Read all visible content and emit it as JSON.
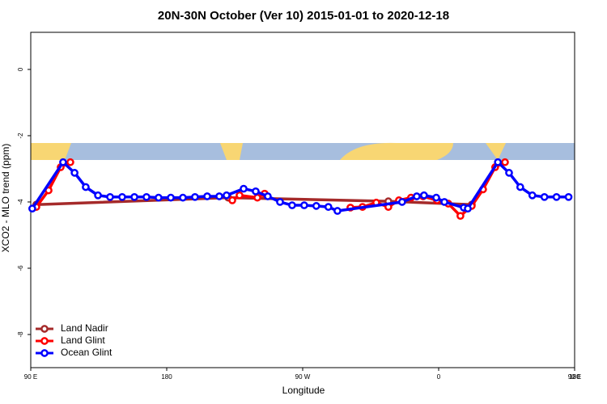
{
  "chart_data": {
    "type": "line",
    "title": "20N-30N October (Ver 10)   2015-01-01 to 2020-12-18",
    "x_label": "Longitude",
    "y_label": "XCO2 - MLO trend (ppm)",
    "xlim": [
      90,
      450
    ],
    "ylim": [
      -9,
      1.12
    ],
    "xticks": [
      {
        "value": 90,
        "label": "90 E"
      },
      180,
      {
        "value": 270,
        "label": "90 W"
      },
      {
        "value": 360,
        "label": "0"
      },
      {
        "value": 450,
        "label": "90 E"
      },
      {
        "value": 540,
        "label": "180"
      }
    ],
    "yticks": [
      0,
      -2,
      -4,
      -6,
      -8
    ],
    "legend": "bottom-left",
    "series": [
      {
        "name": "Land Nadir",
        "color": "#a52a2a",
        "x": [
          93.7,
          220.7,
          326.7,
          381.9
        ],
        "values": [
          -4.08,
          -3.87,
          -3.98,
          -4.08
        ]
      },
      {
        "name": "Land Glint",
        "color": "#ff0000",
        "x": [
          93.7,
          101.8,
          109.8,
          116.2,
          216,
          223.4,
          228.2,
          240,
          244.8,
          295.7,
          301.6,
          309.6,
          318.7,
          326.7,
          333.7,
          341.7,
          349.7,
          358.9,
          366.4,
          374.4,
          381.9,
          389.4,
          397.4,
          403.9
        ],
        "values": [
          -4.15,
          -3.65,
          -2.95,
          -2.8,
          null,
          -3.95,
          -3.8,
          -3.87,
          -3.75,
          null,
          -4.17,
          -4.15,
          -4.02,
          -4.15,
          -3.95,
          -3.87,
          -3.83,
          -3.95,
          -4.05,
          -4.42,
          -4.12,
          -3.62,
          -2.95,
          -2.8
        ]
      },
      {
        "name": "Ocean Glint",
        "color": "#0000ff",
        "x": [
          91,
          111.4,
          119,
          126.4,
          134.5,
          142.5,
          150.5,
          158.6,
          166.6,
          174.6,
          182.7,
          190.7,
          198.7,
          206.8,
          214.8,
          219.6,
          230.9,
          238.9,
          246.9,
          255,
          263,
          271,
          279,
          287,
          293,
          335.8,
          345.5,
          350.3,
          358.4,
          363.8,
          376.6,
          379.3,
          399.2,
          406.6,
          414,
          422,
          430,
          438,
          446
        ],
        "values": [
          -4.2,
          -2.8,
          -3.12,
          -3.55,
          -3.8,
          -3.85,
          -3.85,
          -3.85,
          -3.85,
          -3.87,
          -3.87,
          -3.87,
          -3.85,
          -3.83,
          -3.83,
          -3.8,
          -3.6,
          -3.68,
          -3.83,
          -4.0,
          -4.1,
          -4.1,
          -4.12,
          -4.15,
          -4.27,
          -4.0,
          -3.83,
          -3.8,
          -3.87,
          -4.0,
          -4.17,
          -4.2,
          -2.8,
          -3.12,
          -3.55,
          -3.8,
          -3.85,
          -3.85,
          -3.85
        ]
      }
    ]
  }
}
